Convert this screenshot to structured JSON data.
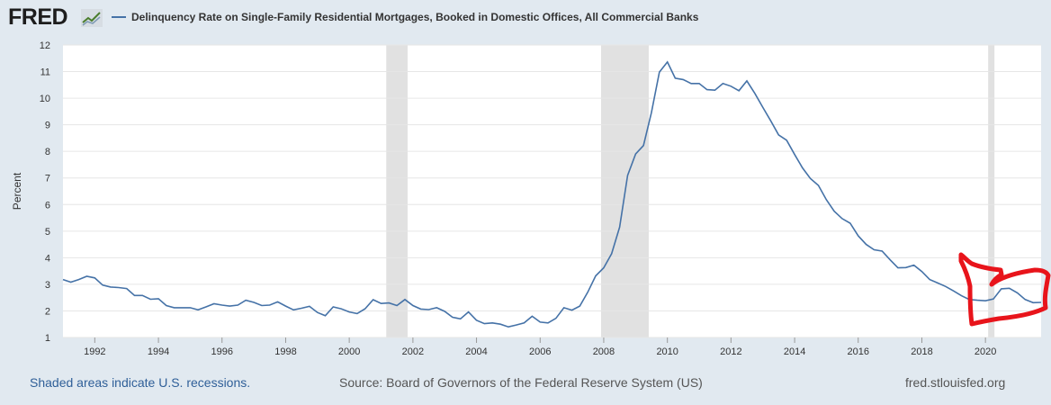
{
  "header": {
    "logo_text": "FRED",
    "logo_icon": "chart-trend-icon",
    "series_title": "Delinquency Rate on Single-Family Residential Mortgages, Booked in Domestic Offices, All Commercial Banks"
  },
  "footer": {
    "recession_note": "Shaded areas indicate U.S. recessions.",
    "source": "Source: Board of Governors of the Federal Reserve System (US)",
    "site": "fred.stlouisfed.org"
  },
  "colors": {
    "background": "#e1e9f0",
    "plot": "#ffffff",
    "series": "#4572a7",
    "recession": "#e1e1e1",
    "annotation": "#e8141b"
  },
  "chart_data": {
    "type": "line",
    "ylabel": "Percent",
    "xlim": [
      "1991-01-01",
      "2021-10-01"
    ],
    "ylim": [
      1,
      12
    ],
    "yticks": [
      1,
      2,
      3,
      4,
      5,
      6,
      7,
      8,
      9,
      10,
      11,
      12
    ],
    "xticks": [
      "1992",
      "1994",
      "1996",
      "1998",
      "2000",
      "2002",
      "2004",
      "2006",
      "2008",
      "2010",
      "2012",
      "2014",
      "2016",
      "2018",
      "2020"
    ],
    "grid": true,
    "legend": "top-left",
    "recessions": [
      {
        "start": "2001-03-01",
        "end": "2001-11-01"
      },
      {
        "start": "2007-12-01",
        "end": "2009-06-01"
      },
      {
        "start": "2020-02-01",
        "end": "2020-04-01"
      }
    ],
    "series": [
      {
        "name": "Delinquency Rate on Single-Family Residential Mortgages, Booked in Domestic Offices, All Commercial Banks",
        "points": [
          [
            "1991-01-01",
            3.18
          ],
          [
            "1991-04-01",
            3.08
          ],
          [
            "1991-07-01",
            3.18
          ],
          [
            "1991-10-01",
            3.3
          ],
          [
            "1992-01-01",
            3.24
          ],
          [
            "1992-04-01",
            2.97
          ],
          [
            "1992-07-01",
            2.9
          ],
          [
            "1992-10-01",
            2.88
          ],
          [
            "1993-01-01",
            2.84
          ],
          [
            "1993-04-01",
            2.58
          ],
          [
            "1993-07-01",
            2.58
          ],
          [
            "1993-10-01",
            2.44
          ],
          [
            "1994-01-01",
            2.46
          ],
          [
            "1994-04-01",
            2.2
          ],
          [
            "1994-07-01",
            2.12
          ],
          [
            "1994-10-01",
            2.12
          ],
          [
            "1995-01-01",
            2.12
          ],
          [
            "1995-04-01",
            2.04
          ],
          [
            "1995-07-01",
            2.15
          ],
          [
            "1995-10-01",
            2.27
          ],
          [
            "1996-01-01",
            2.22
          ],
          [
            "1996-04-01",
            2.18
          ],
          [
            "1996-07-01",
            2.22
          ],
          [
            "1996-10-01",
            2.4
          ],
          [
            "1997-01-01",
            2.32
          ],
          [
            "1997-04-01",
            2.2
          ],
          [
            "1997-07-01",
            2.22
          ],
          [
            "1997-10-01",
            2.34
          ],
          [
            "1998-01-01",
            2.18
          ],
          [
            "1998-04-01",
            2.04
          ],
          [
            "1998-07-01",
            2.1
          ],
          [
            "1998-10-01",
            2.17
          ],
          [
            "1999-01-01",
            1.94
          ],
          [
            "1999-04-01",
            1.82
          ],
          [
            "1999-07-01",
            2.15
          ],
          [
            "1999-10-01",
            2.08
          ],
          [
            "2000-01-01",
            1.96
          ],
          [
            "2000-04-01",
            1.9
          ],
          [
            "2000-07-01",
            2.08
          ],
          [
            "2000-10-01",
            2.42
          ],
          [
            "2001-01-01",
            2.28
          ],
          [
            "2001-04-01",
            2.3
          ],
          [
            "2001-07-01",
            2.2
          ],
          [
            "2001-10-01",
            2.43
          ],
          [
            "2002-01-01",
            2.2
          ],
          [
            "2002-04-01",
            2.07
          ],
          [
            "2002-07-01",
            2.05
          ],
          [
            "2002-10-01",
            2.12
          ],
          [
            "2003-01-01",
            1.98
          ],
          [
            "2003-04-01",
            1.76
          ],
          [
            "2003-07-01",
            1.7
          ],
          [
            "2003-10-01",
            1.96
          ],
          [
            "2004-01-01",
            1.65
          ],
          [
            "2004-04-01",
            1.52
          ],
          [
            "2004-07-01",
            1.55
          ],
          [
            "2004-10-01",
            1.5
          ],
          [
            "2005-01-01",
            1.4
          ],
          [
            "2005-04-01",
            1.47
          ],
          [
            "2005-07-01",
            1.55
          ],
          [
            "2005-10-01",
            1.8
          ],
          [
            "2006-01-01",
            1.58
          ],
          [
            "2006-04-01",
            1.55
          ],
          [
            "2006-07-01",
            1.72
          ],
          [
            "2006-10-01",
            2.12
          ],
          [
            "2007-01-01",
            2.03
          ],
          [
            "2007-04-01",
            2.18
          ],
          [
            "2007-07-01",
            2.7
          ],
          [
            "2007-10-01",
            3.32
          ],
          [
            "2008-01-01",
            3.62
          ],
          [
            "2008-04-01",
            4.15
          ],
          [
            "2008-07-01",
            5.15
          ],
          [
            "2008-10-01",
            7.1
          ],
          [
            "2009-01-01",
            7.9
          ],
          [
            "2009-04-01",
            8.22
          ],
          [
            "2009-07-01",
            9.45
          ],
          [
            "2009-10-01",
            10.98
          ],
          [
            "2010-01-01",
            11.36
          ],
          [
            "2010-04-01",
            10.75
          ],
          [
            "2010-07-01",
            10.7
          ],
          [
            "2010-10-01",
            10.55
          ],
          [
            "2011-01-01",
            10.55
          ],
          [
            "2011-04-01",
            10.32
          ],
          [
            "2011-07-01",
            10.3
          ],
          [
            "2011-10-01",
            10.55
          ],
          [
            "2012-01-01",
            10.45
          ],
          [
            "2012-04-01",
            10.28
          ],
          [
            "2012-07-01",
            10.65
          ],
          [
            "2012-10-01",
            10.18
          ],
          [
            "2013-01-01",
            9.65
          ],
          [
            "2013-04-01",
            9.15
          ],
          [
            "2013-07-01",
            8.62
          ],
          [
            "2013-10-01",
            8.42
          ],
          [
            "2014-01-01",
            7.88
          ],
          [
            "2014-04-01",
            7.38
          ],
          [
            "2014-07-01",
            6.98
          ],
          [
            "2014-10-01",
            6.72
          ],
          [
            "2015-01-01",
            6.18
          ],
          [
            "2015-04-01",
            5.75
          ],
          [
            "2015-07-01",
            5.47
          ],
          [
            "2015-10-01",
            5.3
          ],
          [
            "2016-01-01",
            4.82
          ],
          [
            "2016-04-01",
            4.5
          ],
          [
            "2016-07-01",
            4.3
          ],
          [
            "2016-10-01",
            4.25
          ],
          [
            "2017-01-01",
            3.92
          ],
          [
            "2017-04-01",
            3.62
          ],
          [
            "2017-07-01",
            3.63
          ],
          [
            "2017-10-01",
            3.72
          ],
          [
            "2018-01-01",
            3.48
          ],
          [
            "2018-04-01",
            3.18
          ],
          [
            "2018-07-01",
            3.05
          ],
          [
            "2018-10-01",
            2.92
          ],
          [
            "2019-01-01",
            2.75
          ],
          [
            "2019-04-01",
            2.57
          ],
          [
            "2019-07-01",
            2.43
          ],
          [
            "2019-10-01",
            2.4
          ],
          [
            "2020-01-01",
            2.38
          ],
          [
            "2020-04-01",
            2.45
          ],
          [
            "2020-07-01",
            2.83
          ],
          [
            "2020-10-01",
            2.85
          ],
          [
            "2021-01-01",
            2.68
          ],
          [
            "2021-04-01",
            2.43
          ],
          [
            "2021-07-01",
            2.31
          ],
          [
            "2021-10-01",
            2.32
          ]
        ]
      }
    ]
  }
}
